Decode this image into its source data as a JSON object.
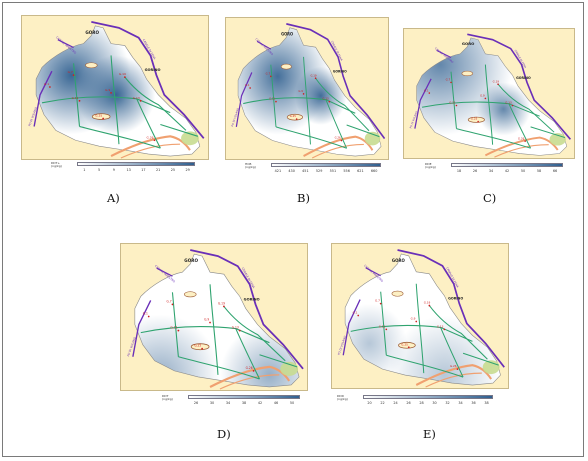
{
  "map_text": {
    "sopo": "GORO",
    "gorino": "GORINO",
    "canal_left": "CANALE MAESTRO",
    "canal_right": "CANALE DI FENA",
    "po_river": "PO DI VOLANO"
  },
  "stations": [
    {
      "id": "A",
      "label": "G.1"
    },
    {
      "id": "B",
      "label": "G.7"
    },
    {
      "id": "C",
      "label": "G.11"
    },
    {
      "id": "D",
      "label": "G.9"
    },
    {
      "id": "E",
      "label": "G.19"
    },
    {
      "id": "F",
      "label": "G.13"
    },
    {
      "id": "G",
      "label": "G.25"
    },
    {
      "id": "H",
      "label": "G.26"
    }
  ],
  "panels": [
    {
      "caption": "A)",
      "legend": {
        "var": "DDT+",
        "unit": "(ng/kg)",
        "ticks": [
          "1",
          "5",
          "9",
          "13",
          "17",
          "21",
          "25",
          "29"
        ],
        "color_min": "#ffffff",
        "color_max": "#2f5f8f"
      }
    },
    {
      "caption": "B)",
      "legend": {
        "var": "HCB",
        "unit": "(ng/kg)",
        "ticks": [
          "421",
          "430",
          "451",
          "529",
          "551",
          "556",
          "621",
          "660"
        ],
        "color_min": "#ffffff",
        "color_max": "#2f5f8f"
      }
    },
    {
      "caption": "C)",
      "legend": {
        "var": "DDE",
        "unit": "(ng/kg)",
        "ticks": [
          "18",
          "26",
          "34",
          "42",
          "50",
          "58",
          "66"
        ],
        "color_min": "#ffffff",
        "color_max": "#2f5f8f"
      }
    },
    {
      "caption": "D)",
      "legend": {
        "var": "DDT",
        "unit": "(ng/kg)",
        "ticks": [
          "26",
          "30",
          "34",
          "38",
          "42",
          "46",
          "50"
        ],
        "color_min": "#ffffff",
        "color_max": "#2f5f8f"
      }
    },
    {
      "caption": "E)",
      "legend": {
        "var": "DDD",
        "unit": "(ng/kg)",
        "ticks": [
          "20",
          "22",
          "24",
          "26",
          "28",
          "30",
          "32",
          "34",
          "36",
          "38"
        ],
        "color_min": "#ffffff",
        "color_max": "#2f5f8f"
      }
    }
  ],
  "colors": {
    "land": "#fdf0c4",
    "lagoon_deep": "#2f5f8f",
    "lagoon_light": "#ffffff",
    "channels": "#2fa36f",
    "roads": "#6a2fb8",
    "stations": "#d02020",
    "sand_bar": "#f0a070",
    "reeds": "#c8dc90"
  }
}
